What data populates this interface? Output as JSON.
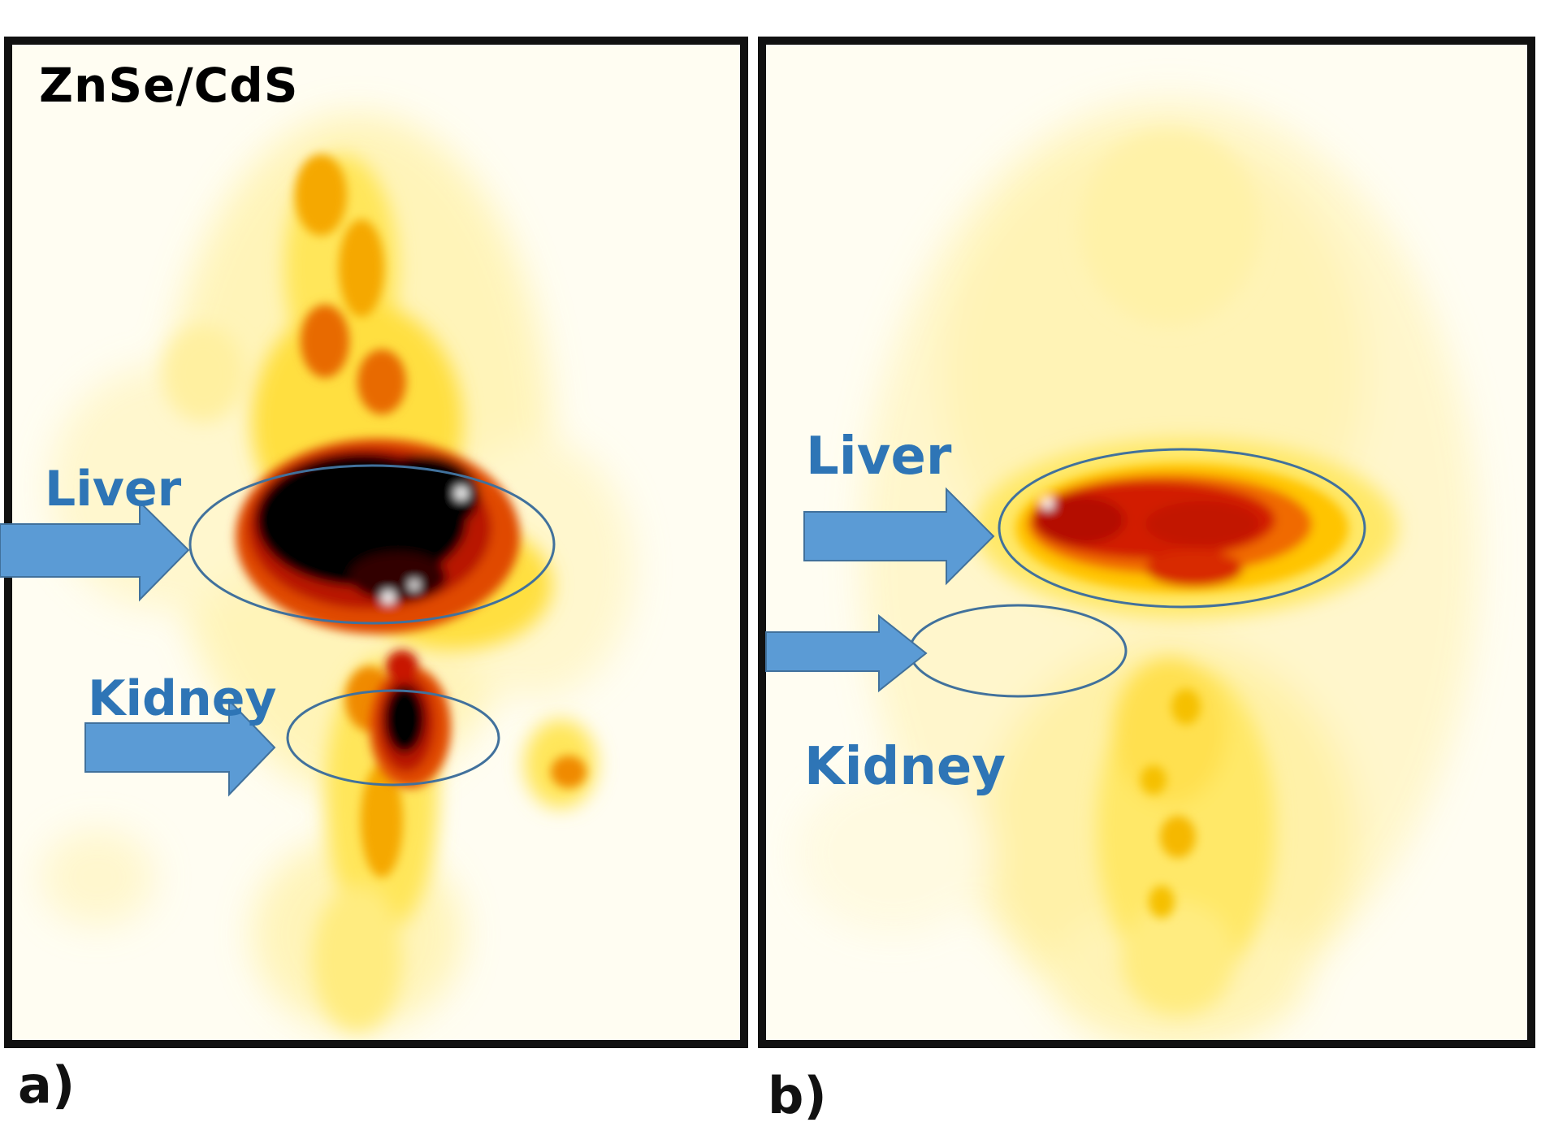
{
  "panel_a": {
    "title": "ZnSe/CdS",
    "letter": "a)",
    "liver_label": "Liver",
    "kidney_label": "Kidney"
  },
  "panel_b": {
    "letter": "b)",
    "liver_label": "Liver",
    "kidney_label": "Kidney"
  },
  "colors": {
    "background_tint": "#fffdf2",
    "frame": "#111111",
    "arrow_fill": "#5b9bd5",
    "arrow_stroke": "#41719c",
    "ellipse_stroke": "#41719c",
    "label_text": "#2e75b6",
    "heat_low": "#ffe65a",
    "heat_mid": "#f5a800",
    "heat_high": "#cc1b00",
    "heat_max": "#000000"
  }
}
